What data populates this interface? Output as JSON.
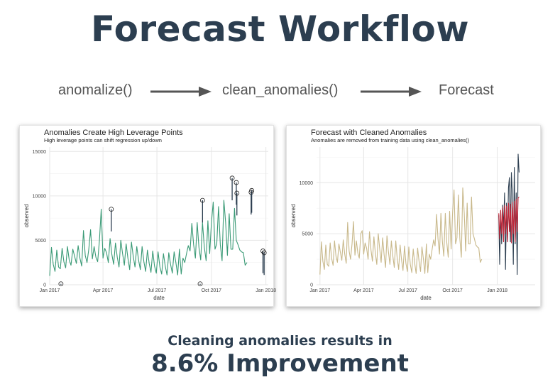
{
  "title": "Forecast Workflow",
  "workflow": {
    "steps": [
      "anomalize()",
      "clean_anomalies()",
      "Forecast"
    ]
  },
  "summary": {
    "line1": "Cleaning anomalies results in",
    "line2": "8.6% Improvement"
  },
  "colors": {
    "title": "#2c3e50",
    "series_green": "#3a9a76",
    "series_tan": "#c8b88a",
    "series_dark": "#2c3e50",
    "series_red": "#c0283a"
  },
  "chart_data": [
    {
      "type": "line",
      "title": "Anomalies Create High Leverage Points",
      "subtitle": "High leverage points can shift regression up/down",
      "xlabel": "date",
      "ylabel": "observed",
      "ylim": [
        0,
        15500
      ],
      "yticks": [
        0,
        5000,
        10000,
        15000
      ],
      "ytick_labels": [
        "0",
        "5000",
        "10000",
        "15000"
      ],
      "xticks": [
        "Jan 2017",
        "Apr 2017",
        "Jul 2017",
        "Oct 2017",
        "Jan 2018"
      ],
      "x_range": [
        "2017-01-01",
        "2018-01-05"
      ],
      "grid": true,
      "anomalies": [
        {
          "date": "2017-01-20",
          "value": 100
        },
        {
          "date": "2017-04-15",
          "value": 8500
        },
        {
          "date": "2017-09-12",
          "value": 100
        },
        {
          "date": "2017-09-16",
          "value": 9500
        },
        {
          "date": "2017-11-05",
          "value": 12000
        },
        {
          "date": "2017-11-12",
          "value": 11500
        },
        {
          "date": "2017-11-13",
          "value": 10300
        },
        {
          "date": "2017-12-07",
          "value": 10400
        },
        {
          "date": "2017-12-08",
          "value": 10600
        },
        {
          "date": "2017-12-27",
          "value": 3800
        },
        {
          "date": "2017-12-29",
          "value": 3600
        }
      ],
      "series": [
        {
          "values_start": "2017-01-01",
          "values_step_days": 3,
          "values": [
            1000,
            4200,
            2300,
            1500,
            3900,
            2000,
            1800,
            4100,
            2600,
            1900,
            4300,
            2800,
            2200,
            4000,
            3200,
            2400,
            4400,
            3000,
            2100,
            6100,
            3300,
            2500,
            4000,
            6200,
            2900,
            4300,
            3100,
            2600,
            5000,
            8500,
            3000,
            4100,
            3600,
            2500,
            5200,
            3400,
            2300,
            4700,
            3100,
            2000,
            5000,
            3500,
            2200,
            4600,
            3000,
            1700,
            4800,
            3200,
            2000,
            4300,
            2800,
            1700,
            4300,
            2600,
            1500,
            3900,
            2400,
            1400,
            3800,
            2100,
            1300,
            3700,
            2000,
            1200,
            3500,
            2100,
            1100,
            3600,
            2300,
            1300,
            3700,
            2500,
            1100,
            4000,
            1200,
            3000,
            2500,
            3500,
            4400,
            3800,
            6900,
            4500,
            3000,
            7000,
            4200,
            2800,
            7000,
            4200,
            2700,
            7200,
            3500,
            7000,
            9300,
            4000,
            4600,
            8800,
            4500,
            2700,
            9500,
            7000,
            3300,
            8000,
            4000,
            4000,
            8600,
            5000,
            4500,
            3900,
            3700,
            3600,
            2200,
            2500
          ]
        }
      ]
    },
    {
      "type": "line",
      "title": "Forecast with Cleaned Anomalies",
      "subtitle": "Anomalies are removed from training data using clean_anomalies()",
      "xlabel": "date",
      "ylabel": "observed",
      "ylim": [
        0,
        13500
      ],
      "yticks": [
        0,
        5000,
        10000
      ],
      "ytick_labels": [
        "0",
        "5000",
        "10000"
      ],
      "xticks": [
        "Jan 2017",
        "Apr 2017",
        "Jul 2017",
        "Oct 2017",
        "Jan 2018"
      ],
      "x_range": [
        "2016-12-25",
        "2018-03-20"
      ],
      "grid": true,
      "series": [
        {
          "name": "",
          "color_key": "series_tan",
          "values_start": "2017-01-01",
          "values_step_days": 3,
          "values": [
            1000,
            4200,
            2300,
            1500,
            3900,
            2000,
            1800,
            4100,
            2600,
            1900,
            4300,
            2800,
            2200,
            4000,
            3200,
            2400,
            4400,
            3000,
            2100,
            6100,
            3300,
            2500,
            4000,
            6200,
            2900,
            4300,
            3100,
            2600,
            5000,
            5300,
            3000,
            4100,
            3600,
            2500,
            5200,
            3400,
            2300,
            4700,
            3100,
            2000,
            5000,
            3500,
            2200,
            4600,
            3000,
            1700,
            4800,
            3200,
            2000,
            4300,
            2800,
            1700,
            4300,
            2600,
            1500,
            3900,
            2400,
            1400,
            3800,
            2100,
            1300,
            3700,
            2000,
            1200,
            3500,
            2100,
            1100,
            3600,
            2300,
            1300,
            3700,
            2500,
            1100,
            4000,
            1200,
            3000,
            2500,
            3500,
            4400,
            3800,
            6900,
            4500,
            3000,
            7000,
            4200,
            2800,
            7000,
            4200,
            2700,
            7200,
            3500,
            7000,
            9300,
            4000,
            4600,
            8800,
            4500,
            2700,
            9500,
            7000,
            3300,
            8000,
            4000,
            4000,
            8600,
            5000,
            4500,
            3900,
            3700,
            3600,
            2200,
            2500
          ]
        },
        {
          "name": "",
          "color_key": "series_dark",
          "values_start": "2018-01-04",
          "values_step_days": 2,
          "values": [
            6800,
            2000,
            7200,
            4000,
            7800,
            5500,
            9000,
            1500,
            8000,
            4200,
            9500,
            10500,
            4200,
            11000,
            9000,
            2000,
            11500,
            4000,
            9000,
            1000,
            12800,
            11000
          ]
        },
        {
          "name": "",
          "color_key": "series_red",
          "values_start": "2018-01-04",
          "values_step_days": 2,
          "values": [
            7000,
            4500,
            7300,
            5000,
            7600,
            4200,
            7800,
            5000,
            7700,
            4200,
            8000,
            5200,
            7900,
            4100,
            8100,
            5000,
            8200,
            4200,
            8400,
            5200,
            8500,
            8600
          ]
        }
      ]
    }
  ]
}
